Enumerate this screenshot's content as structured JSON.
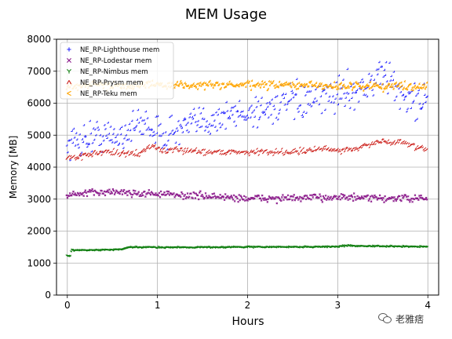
{
  "chart_data": {
    "type": "scatter",
    "title": "MEM Usage",
    "xlabel": "Hours",
    "ylabel": "Memory [MB]",
    "xlim": [
      -0.12,
      4.12
    ],
    "ylim": [
      0,
      8000
    ],
    "xticks": [
      0,
      1,
      2,
      3,
      4
    ],
    "yticks": [
      0,
      1000,
      2000,
      3000,
      4000,
      5000,
      6000,
      7000,
      8000
    ],
    "grid": true,
    "legend_position": "top-left",
    "series": [
      {
        "name": "NE_RP-Lighthouse mem",
        "marker": "+",
        "color": "#2b2bff",
        "noise": 260,
        "x": [
          0.0,
          0.1,
          0.2,
          0.3,
          0.4,
          0.5,
          0.6,
          0.7,
          0.8,
          0.9,
          1.0,
          1.2,
          1.4,
          1.6,
          1.8,
          2.0,
          2.2,
          2.4,
          2.6,
          2.8,
          3.0,
          3.2,
          3.4,
          3.5,
          3.6,
          3.7,
          3.8,
          3.9,
          4.0
        ],
        "y": [
          4700,
          4800,
          4900,
          4950,
          5000,
          4900,
          5000,
          5200,
          5300,
          5400,
          5000,
          5100,
          5300,
          5500,
          5600,
          5700,
          5800,
          6000,
          6000,
          6100,
          6300,
          6400,
          6600,
          7000,
          6600,
          6300,
          6100,
          6000,
          6300
        ]
      },
      {
        "name": "NE_RP-Lodestar mem",
        "marker": "x",
        "color": "#8b1a8b",
        "noise": 55,
        "x": [
          0.0,
          0.2,
          0.4,
          0.6,
          0.8,
          1.0,
          1.2,
          1.5,
          1.8,
          2.0,
          2.3,
          2.6,
          3.0,
          3.3,
          3.6,
          3.8,
          4.0
        ],
        "y": [
          3080,
          3150,
          3200,
          3200,
          3150,
          3150,
          3100,
          3080,
          3030,
          3000,
          3000,
          3000,
          3050,
          3000,
          3000,
          3000,
          2980
        ]
      },
      {
        "name": "NE_RP-Nimbus mem",
        "marker": "Y",
        "color": "#117f11",
        "noise": 10,
        "x": [
          0.0,
          0.04,
          0.05,
          0.3,
          0.6,
          0.7,
          1.0,
          1.5,
          2.0,
          2.5,
          3.0,
          3.1,
          3.5,
          4.0
        ],
        "y": [
          1200,
          1210,
          1380,
          1380,
          1400,
          1470,
          1470,
          1470,
          1480,
          1480,
          1490,
          1520,
          1500,
          1490
        ]
      },
      {
        "name": "NE_RP-Prysm mem",
        "marker": "^",
        "color": "#cc1f1a",
        "noise": 45,
        "x": [
          0.0,
          0.2,
          0.4,
          0.6,
          0.8,
          0.95,
          1.05,
          1.3,
          1.6,
          2.0,
          2.4,
          2.7,
          2.9,
          3.0,
          3.2,
          3.3,
          3.4,
          3.5,
          3.6,
          3.7,
          3.8,
          3.9,
          4.0
        ],
        "y": [
          4250,
          4350,
          4450,
          4400,
          4400,
          4650,
          4500,
          4500,
          4450,
          4450,
          4450,
          4500,
          4550,
          4500,
          4550,
          4650,
          4700,
          4800,
          4700,
          4800,
          4700,
          4550,
          4550
        ]
      },
      {
        "name": "NE_RP-Teku mem",
        "marker": "<",
        "color": "#ffa500",
        "noise": 60,
        "x": [
          0.0,
          0.2,
          0.4,
          0.6,
          0.8,
          1.0,
          1.5,
          2.0,
          2.5,
          3.0,
          3.5,
          4.0
        ],
        "y": [
          6500,
          6550,
          6550,
          6550,
          6550,
          6550,
          6550,
          6550,
          6550,
          6520,
          6520,
          6520
        ]
      }
    ]
  },
  "watermark": {
    "text": "老雅痞",
    "icon": "wechat-logo-icon"
  }
}
